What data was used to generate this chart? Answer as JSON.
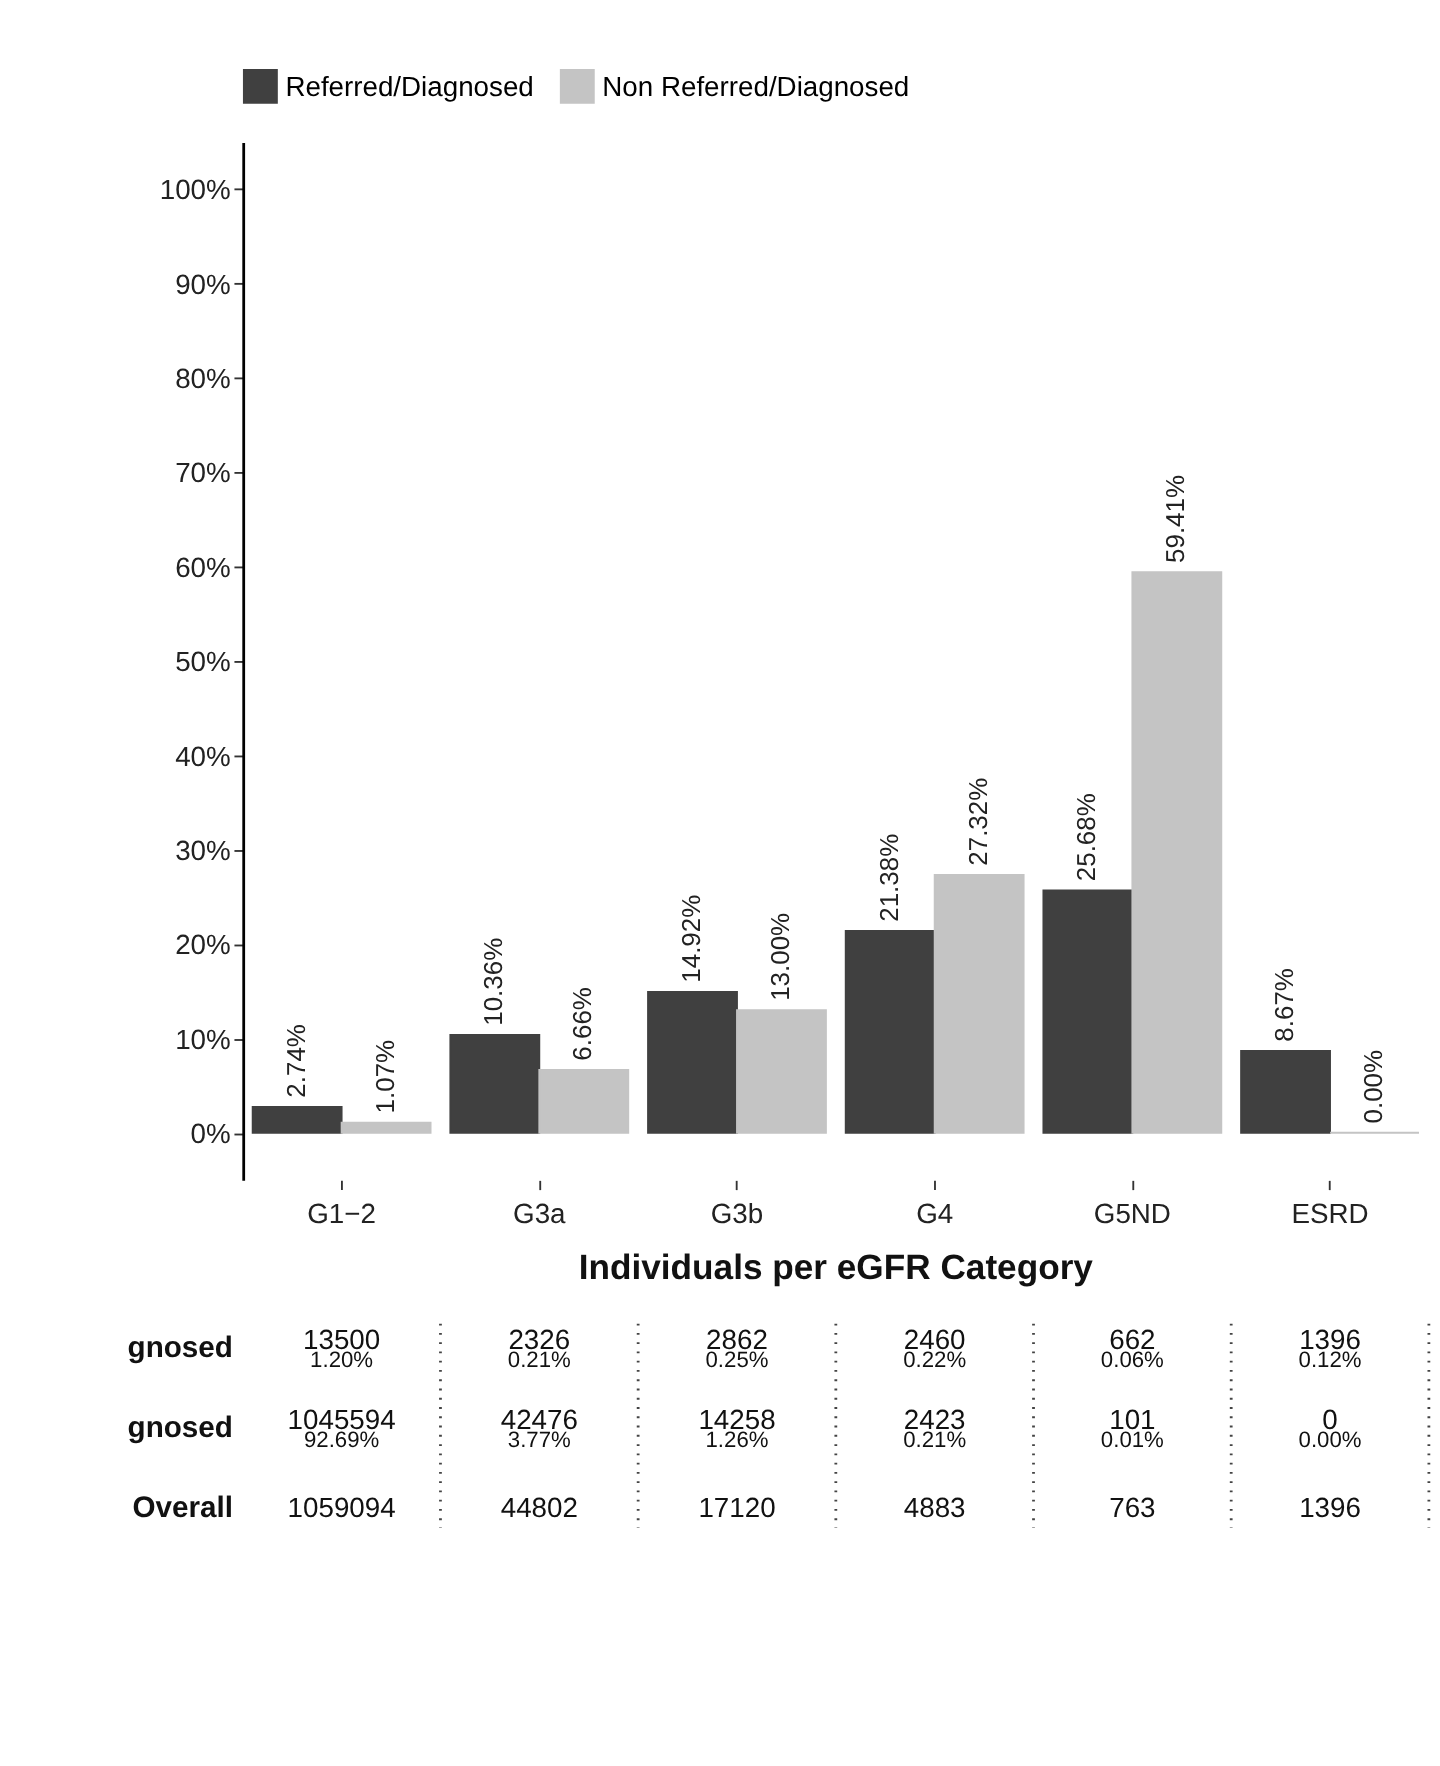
{
  "chart_data": {
    "type": "bar",
    "categories": [
      "G1−2",
      "G3a",
      "G3b",
      "G4",
      "G5ND",
      "ESRD"
    ],
    "series": [
      {
        "name": "Referred/Diagnosed",
        "color": "#404040",
        "values": [
          2.74,
          10.36,
          14.92,
          21.38,
          25.68,
          8.67
        ],
        "value_labels": [
          "2.74%",
          "10.36%",
          "14.92%",
          "21.38%",
          "25.68%",
          "8.67%"
        ]
      },
      {
        "name": "Non Referred/Diagnosed",
        "color": "#c4c4c4",
        "values": [
          1.07,
          6.66,
          13.0,
          27.32,
          59.41,
          0.0
        ],
        "value_labels": [
          "1.07%",
          "6.66%",
          "13.00%",
          "27.32%",
          "59.41%",
          "0.00%"
        ]
      }
    ],
    "ylim": [
      -5,
      105
    ],
    "yticks": [
      {
        "value": 0,
        "label": "0%"
      },
      {
        "value": 10,
        "label": "10%"
      },
      {
        "value": 20,
        "label": "20%"
      },
      {
        "value": 30,
        "label": "30%"
      },
      {
        "value": 40,
        "label": "40%"
      },
      {
        "value": 50,
        "label": "50%"
      },
      {
        "value": 60,
        "label": "60%"
      },
      {
        "value": 70,
        "label": "70%"
      },
      {
        "value": 80,
        "label": "80%"
      },
      {
        "value": 90,
        "label": "90%"
      },
      {
        "value": 100,
        "label": "100%"
      }
    ],
    "grid": false,
    "legend": "top",
    "annotations": [
      "Individuals per eGFR Category",
      "gnosed",
      "13500",
      "1.20%",
      "2326",
      "0.21%",
      "2862",
      "0.25%",
      "2460",
      "0.22%",
      "662",
      "0.06%",
      "1396",
      "0.12%",
      "gnosed",
      "1045594",
      "92.69%",
      "42476",
      "3.77%",
      "14258",
      "1.26%",
      "2423",
      "0.21%",
      "101",
      "0.01%",
      "0",
      "0.00%",
      "Overall",
      "1059094",
      "44802",
      "17120",
      "4883",
      "763",
      "1396"
    ]
  }
}
